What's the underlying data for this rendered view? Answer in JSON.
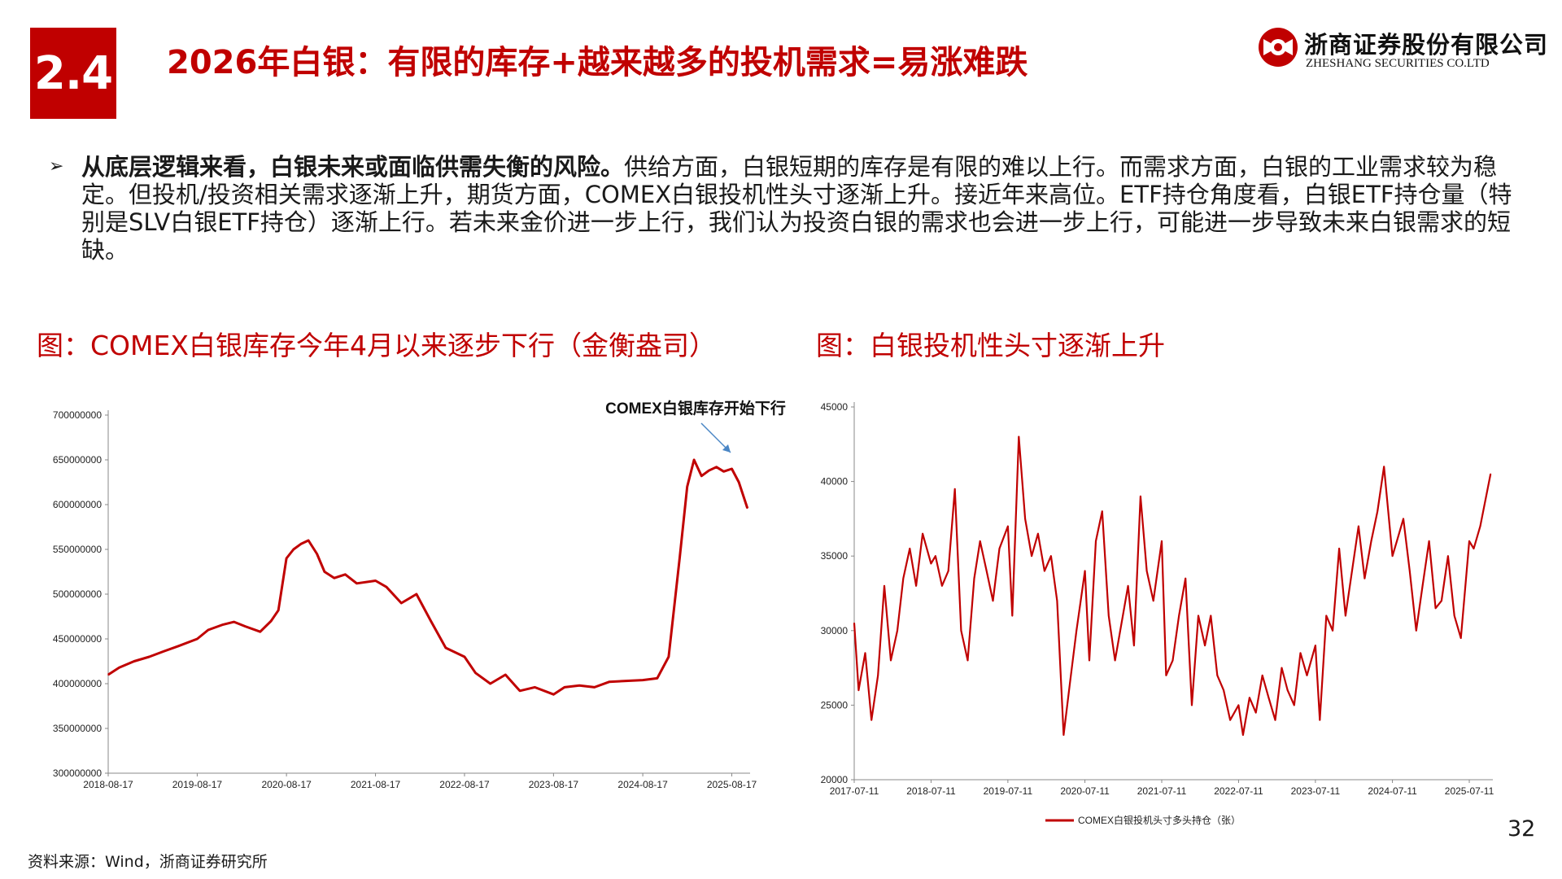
{
  "header": {
    "section_number": "2.4",
    "title": "2026年白银：有限的库存+越来越多的投机需求=易涨难跌",
    "logo_cn": "浙商证券股份有限公司",
    "logo_en": "ZHESHANG SECURITIES CO.LTD"
  },
  "bullet": {
    "marker": "➢",
    "bold_text": "从底层逻辑来看，白银未来或面临供需失衡的风险。",
    "normal_text": "供给方面，白银短期的库存是有限的难以上行。而需求方面，白银的工业需求较为稳定。但投机/投资相关需求逐渐上升，期货方面，COMEX白银投机性头寸逐渐上升。接近年来高位。ETF持仓角度看，白银ETF持仓量（特别是SLV白银ETF持仓）逐渐上行。若未来金价进一步上行，我们认为投资白银的需求也会进一步上行，可能进一步导致未来白银需求的短缺。"
  },
  "colors": {
    "accent": "#c00000",
    "series": "#c00000",
    "annotation_arrow": "#4a86c5"
  },
  "chart_data": [
    {
      "type": "line",
      "caption": "图：COMEX白银库存今年4月以来逐步下行（金衡盎司）",
      "annotation": "COMEX白银库存开始下行",
      "x_ticks": [
        "2018-08-17",
        "2019-08-17",
        "2020-08-17",
        "2021-08-17",
        "2022-08-17",
        "2023-08-17",
        "2024-08-17",
        "2025-08-17"
      ],
      "y_ticks": [
        300000000,
        350000000,
        400000000,
        450000000,
        500000000,
        550000000,
        600000000,
        650000000,
        700000000
      ],
      "ylim": [
        300000000,
        700000000
      ],
      "xlim": [
        "2018-08-17",
        "2025-10-31"
      ],
      "legend": "none",
      "series": [
        {
          "x": [
            "2018-08-17",
            "2018-10-01",
            "2018-12-01",
            "2019-02-01",
            "2019-04-01",
            "2019-06-01",
            "2019-08-17",
            "2019-10-01",
            "2019-12-01",
            "2020-01-15",
            "2020-03-01",
            "2020-05-01",
            "2020-06-15",
            "2020-07-15",
            "2020-08-17",
            "2020-09-15",
            "2020-10-15",
            "2020-11-15",
            "2020-12-20",
            "2021-01-20",
            "2021-03-01",
            "2021-04-15",
            "2021-06-01",
            "2021-08-17",
            "2021-10-01",
            "2021-12-01",
            "2022-02-01",
            "2022-04-01",
            "2022-06-01",
            "2022-08-17",
            "2022-10-01",
            "2022-12-01",
            "2023-02-01",
            "2023-04-01",
            "2023-06-01",
            "2023-08-17",
            "2023-10-01",
            "2023-12-01",
            "2024-02-01",
            "2024-04-01",
            "2024-06-01",
            "2024-08-17",
            "2024-10-15",
            "2024-12-01",
            "2025-01-15",
            "2025-02-15",
            "2025-03-15",
            "2025-04-15",
            "2025-05-15",
            "2025-06-15",
            "2025-07-15",
            "2025-08-17",
            "2025-09-15",
            "2025-10-20"
          ],
          "y": [
            410000000,
            418000000,
            425000000,
            430000000,
            436000000,
            442000000,
            450000000,
            460000000,
            466000000,
            469000000,
            464000000,
            458000000,
            470000000,
            482000000,
            540000000,
            550000000,
            556000000,
            560000000,
            545000000,
            525000000,
            518000000,
            522000000,
            512000000,
            515000000,
            508000000,
            490000000,
            500000000,
            470000000,
            440000000,
            430000000,
            412000000,
            400000000,
            410000000,
            392000000,
            396000000,
            388000000,
            396000000,
            398000000,
            396000000,
            402000000,
            403000000,
            404000000,
            406000000,
            430000000,
            540000000,
            620000000,
            650000000,
            632000000,
            638000000,
            642000000,
            637000000,
            640000000,
            625000000,
            596000000
          ]
        }
      ]
    },
    {
      "type": "line",
      "caption": "图：白银投机性头寸逐渐上升",
      "legend_label": "COMEX白银投机头寸多头持仓（张）",
      "legend": "bottom",
      "x_ticks": [
        "2017-07-11",
        "2018-07-11",
        "2019-07-11",
        "2020-07-11",
        "2021-07-11",
        "2022-07-11",
        "2023-07-11",
        "2024-07-11",
        "2025-07-11"
      ],
      "y_ticks": [
        20000,
        25000,
        30000,
        35000,
        40000,
        45000
      ],
      "ylim": [
        20000,
        45000
      ],
      "xlim": [
        "2017-07-11",
        "2025-10-31"
      ],
      "series": [
        {
          "name": "COMEX白银投机头寸多头持仓（张）",
          "x": [
            "2017-07-11",
            "2017-08-01",
            "2017-09-01",
            "2017-10-01",
            "2017-11-01",
            "2017-12-01",
            "2018-01-01",
            "2018-02-01",
            "2018-03-01",
            "2018-04-01",
            "2018-05-01",
            "2018-06-01",
            "2018-07-11",
            "2018-08-01",
            "2018-09-01",
            "2018-10-01",
            "2018-11-01",
            "2018-12-01",
            "2019-01-01",
            "2019-02-01",
            "2019-03-01",
            "2019-04-01",
            "2019-05-01",
            "2019-06-01",
            "2019-07-11",
            "2019-08-01",
            "2019-09-01",
            "2019-10-01",
            "2019-11-01",
            "2019-12-01",
            "2020-01-01",
            "2020-02-01",
            "2020-03-01",
            "2020-04-01",
            "2020-05-01",
            "2020-06-01",
            "2020-07-11",
            "2020-08-01",
            "2020-09-01",
            "2020-10-01",
            "2020-11-01",
            "2020-12-01",
            "2021-01-01",
            "2021-02-01",
            "2021-03-01",
            "2021-04-01",
            "2021-05-01",
            "2021-06-01",
            "2021-07-11",
            "2021-08-01",
            "2021-09-01",
            "2021-10-01",
            "2021-11-01",
            "2021-12-01",
            "2022-01-01",
            "2022-02-01",
            "2022-03-01",
            "2022-04-01",
            "2022-05-01",
            "2022-06-01",
            "2022-07-11",
            "2022-08-01",
            "2022-09-01",
            "2022-10-01",
            "2022-11-01",
            "2022-12-01",
            "2023-01-01",
            "2023-02-01",
            "2023-03-01",
            "2023-04-01",
            "2023-05-01",
            "2023-06-01",
            "2023-07-11",
            "2023-08-01",
            "2023-09-01",
            "2023-10-01",
            "2023-11-01",
            "2023-12-01",
            "2024-01-01",
            "2024-02-01",
            "2024-03-01",
            "2024-04-01",
            "2024-05-01",
            "2024-06-01",
            "2024-07-11",
            "2024-08-01",
            "2024-09-01",
            "2024-10-01",
            "2024-11-01",
            "2024-12-01",
            "2025-01-01",
            "2025-02-01",
            "2025-03-01",
            "2025-04-01",
            "2025-05-01",
            "2025-06-01",
            "2025-07-11",
            "2025-08-01",
            "2025-09-01",
            "2025-10-20"
          ],
          "y": [
            30500,
            26000,
            28500,
            24000,
            27000,
            33000,
            28000,
            30000,
            33500,
            35500,
            33000,
            36500,
            34500,
            35000,
            33000,
            34000,
            39500,
            30000,
            28000,
            33500,
            36000,
            34000,
            32000,
            35500,
            37000,
            31000,
            43000,
            37500,
            35000,
            36500,
            34000,
            35000,
            32000,
            23000,
            26500,
            30000,
            34000,
            28000,
            36000,
            38000,
            31000,
            28000,
            30500,
            33000,
            29000,
            39000,
            34000,
            32000,
            36000,
            27000,
            28000,
            31000,
            33500,
            25000,
            31000,
            29000,
            31000,
            27000,
            26000,
            24000,
            25000,
            23000,
            25500,
            24500,
            27000,
            25500,
            24000,
            27500,
            26000,
            25000,
            28500,
            27000,
            29000,
            24000,
            31000,
            30000,
            35500,
            31000,
            34000,
            37000,
            33500,
            36000,
            38000,
            41000,
            35000,
            36000,
            37500,
            34000,
            30000,
            33000,
            36000,
            31500,
            32000,
            35000,
            31000,
            29500,
            36000,
            35500,
            37000,
            40500
          ]
        }
      ]
    }
  ],
  "footer": {
    "source": "资料来源：Wind，浙商证券研究所",
    "page_number": "32"
  }
}
